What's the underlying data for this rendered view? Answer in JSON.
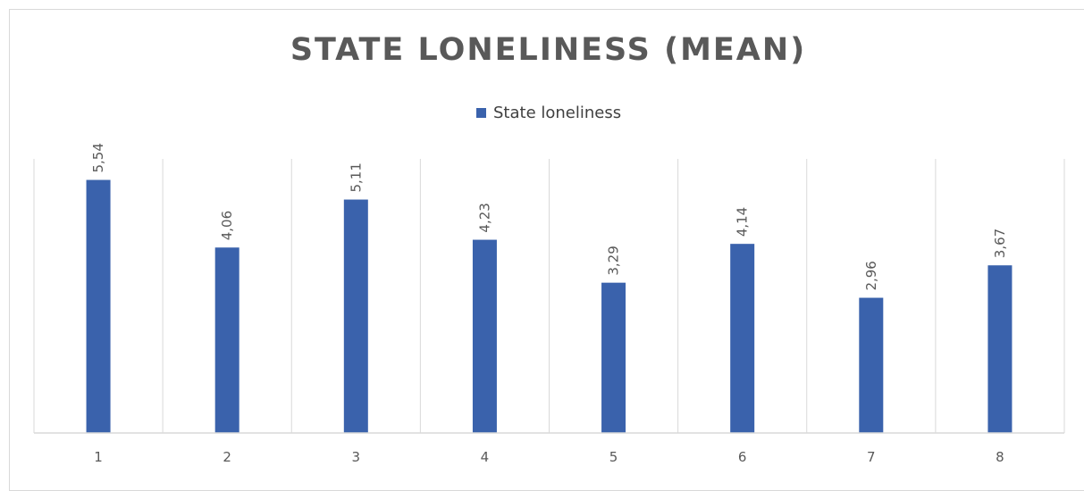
{
  "chart_data": {
    "type": "bar",
    "title": "STATE LONELINESS (MEAN)",
    "categories": [
      "1",
      "2",
      "3",
      "4",
      "5",
      "6",
      "7",
      "8"
    ],
    "series": [
      {
        "name": "State loneliness",
        "values": [
          5.54,
          4.06,
          5.11,
          4.23,
          3.29,
          4.14,
          2.96,
          3.67
        ],
        "labels": [
          "5,54",
          "4,06",
          "5,11",
          "4,23",
          "3,29",
          "4,14",
          "2,96",
          "3,67"
        ],
        "color": "#3a62ac"
      }
    ],
    "xlabel": "",
    "ylabel": "",
    "ylim": [
      0,
      6
    ],
    "legend_position": "top",
    "gridlines": "vertical category separators",
    "gridline_color": "#d9d9d9"
  }
}
